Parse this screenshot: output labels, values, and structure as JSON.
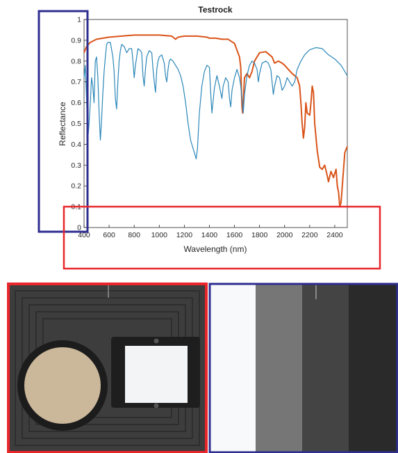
{
  "chart_data": {
    "type": "line",
    "title": "Testrock",
    "xlabel": "Wavelength (nm)",
    "ylabel": "Reflectance",
    "xlim": [
      400,
      2500
    ],
    "ylim": [
      0,
      1
    ],
    "x_ticks": [
      "400",
      "600",
      "800",
      "1000",
      "1200",
      "1400",
      "1600",
      "1800",
      "2000",
      "2200",
      "2400"
    ],
    "y_ticks": [
      "0",
      "0.1",
      "0.2",
      "0.3",
      "0.4",
      "0.5",
      "0.6",
      "0.7",
      "0.8",
      "0.9",
      "1"
    ],
    "grid": false,
    "legend": "none",
    "series": [
      {
        "color": "#d95319",
        "points": [
          [
            400,
            0.84
          ],
          [
            420,
            0.87
          ],
          [
            450,
            0.89
          ],
          [
            500,
            0.905
          ],
          [
            600,
            0.915
          ],
          [
            700,
            0.92
          ],
          [
            800,
            0.925
          ],
          [
            900,
            0.925
          ],
          [
            1000,
            0.925
          ],
          [
            1100,
            0.92
          ],
          [
            1130,
            0.905
          ],
          [
            1150,
            0.915
          ],
          [
            1200,
            0.92
          ],
          [
            1300,
            0.92
          ],
          [
            1380,
            0.915
          ],
          [
            1400,
            0.91
          ],
          [
            1450,
            0.91
          ],
          [
            1500,
            0.905
          ],
          [
            1550,
            0.905
          ],
          [
            1600,
            0.885
          ],
          [
            1640,
            0.82
          ],
          [
            1650,
            0.77
          ],
          [
            1660,
            0.58
          ],
          [
            1665,
            0.55
          ],
          [
            1670,
            0.6
          ],
          [
            1680,
            0.72
          ],
          [
            1700,
            0.74
          ],
          [
            1720,
            0.72
          ],
          [
            1740,
            0.75
          ],
          [
            1760,
            0.8
          ],
          [
            1800,
            0.84
          ],
          [
            1850,
            0.845
          ],
          [
            1900,
            0.82
          ],
          [
            1920,
            0.79
          ],
          [
            1950,
            0.8
          ],
          [
            1980,
            0.79
          ],
          [
            2000,
            0.78
          ],
          [
            2030,
            0.76
          ],
          [
            2060,
            0.74
          ],
          [
            2080,
            0.73
          ],
          [
            2100,
            0.72
          ],
          [
            2120,
            0.68
          ],
          [
            2130,
            0.6
          ],
          [
            2140,
            0.5
          ],
          [
            2150,
            0.43
          ],
          [
            2160,
            0.48
          ],
          [
            2170,
            0.6
          ],
          [
            2180,
            0.55
          ],
          [
            2200,
            0.54
          ],
          [
            2210,
            0.6
          ],
          [
            2220,
            0.68
          ],
          [
            2230,
            0.65
          ],
          [
            2240,
            0.5
          ],
          [
            2260,
            0.37
          ],
          [
            2280,
            0.29
          ],
          [
            2300,
            0.28
          ],
          [
            2320,
            0.3
          ],
          [
            2340,
            0.25
          ],
          [
            2350,
            0.22
          ],
          [
            2370,
            0.27
          ],
          [
            2390,
            0.24
          ],
          [
            2410,
            0.28
          ],
          [
            2420,
            0.2
          ],
          [
            2430,
            0.17
          ],
          [
            2440,
            0.1
          ],
          [
            2450,
            0.12
          ],
          [
            2460,
            0.2
          ],
          [
            2470,
            0.28
          ],
          [
            2480,
            0.36
          ],
          [
            2500,
            0.39
          ]
        ]
      },
      {
        "color": "#2a86b8",
        "points": [
          [
            400,
            0.72
          ],
          [
            410,
            0.78
          ],
          [
            420,
            0.62
          ],
          [
            425,
            0.5
          ],
          [
            430,
            0.42
          ],
          [
            440,
            0.5
          ],
          [
            450,
            0.6
          ],
          [
            460,
            0.72
          ],
          [
            470,
            0.68
          ],
          [
            480,
            0.6
          ],
          [
            490,
            0.8
          ],
          [
            500,
            0.82
          ],
          [
            510,
            0.72
          ],
          [
            520,
            0.55
          ],
          [
            530,
            0.42
          ],
          [
            540,
            0.52
          ],
          [
            550,
            0.65
          ],
          [
            560,
            0.75
          ],
          [
            570,
            0.82
          ],
          [
            580,
            0.88
          ],
          [
            590,
            0.89
          ],
          [
            610,
            0.89
          ],
          [
            630,
            0.82
          ],
          [
            640,
            0.75
          ],
          [
            650,
            0.62
          ],
          [
            660,
            0.57
          ],
          [
            670,
            0.7
          ],
          [
            680,
            0.8
          ],
          [
            690,
            0.85
          ],
          [
            700,
            0.88
          ],
          [
            720,
            0.87
          ],
          [
            740,
            0.84
          ],
          [
            760,
            0.86
          ],
          [
            780,
            0.86
          ],
          [
            790,
            0.8
          ],
          [
            800,
            0.72
          ],
          [
            810,
            0.78
          ],
          [
            820,
            0.82
          ],
          [
            830,
            0.86
          ],
          [
            850,
            0.85
          ],
          [
            860,
            0.84
          ],
          [
            870,
            0.73
          ],
          [
            880,
            0.68
          ],
          [
            890,
            0.76
          ],
          [
            900,
            0.82
          ],
          [
            920,
            0.85
          ],
          [
            940,
            0.84
          ],
          [
            950,
            0.76
          ],
          [
            960,
            0.7
          ],
          [
            970,
            0.65
          ],
          [
            980,
            0.76
          ],
          [
            990,
            0.8
          ],
          [
            1000,
            0.82
          ],
          [
            1020,
            0.83
          ],
          [
            1040,
            0.79
          ],
          [
            1050,
            0.73
          ],
          [
            1060,
            0.7
          ],
          [
            1070,
            0.76
          ],
          [
            1080,
            0.8
          ],
          [
            1090,
            0.81
          ],
          [
            1110,
            0.8
          ],
          [
            1130,
            0.78
          ],
          [
            1150,
            0.76
          ],
          [
            1170,
            0.73
          ],
          [
            1190,
            0.68
          ],
          [
            1210,
            0.6
          ],
          [
            1230,
            0.5
          ],
          [
            1250,
            0.42
          ],
          [
            1270,
            0.38
          ],
          [
            1285,
            0.35
          ],
          [
            1295,
            0.33
          ],
          [
            1305,
            0.38
          ],
          [
            1320,
            0.55
          ],
          [
            1340,
            0.68
          ],
          [
            1360,
            0.75
          ],
          [
            1380,
            0.78
          ],
          [
            1400,
            0.77
          ],
          [
            1410,
            0.65
          ],
          [
            1420,
            0.55
          ],
          [
            1440,
            0.67
          ],
          [
            1460,
            0.73
          ],
          [
            1480,
            0.68
          ],
          [
            1500,
            0.62
          ],
          [
            1510,
            0.68
          ],
          [
            1530,
            0.72
          ],
          [
            1550,
            0.7
          ],
          [
            1560,
            0.62
          ],
          [
            1570,
            0.58
          ],
          [
            1580,
            0.66
          ],
          [
            1600,
            0.72
          ],
          [
            1620,
            0.76
          ],
          [
            1640,
            0.72
          ],
          [
            1650,
            0.68
          ],
          [
            1660,
            0.62
          ],
          [
            1670,
            0.55
          ],
          [
            1680,
            0.64
          ],
          [
            1700,
            0.73
          ],
          [
            1720,
            0.78
          ],
          [
            1740,
            0.8
          ],
          [
            1760,
            0.79
          ],
          [
            1780,
            0.76
          ],
          [
            1790,
            0.7
          ],
          [
            1800,
            0.74
          ],
          [
            1820,
            0.79
          ],
          [
            1850,
            0.8
          ],
          [
            1870,
            0.79
          ],
          [
            1890,
            0.76
          ],
          [
            1900,
            0.7
          ],
          [
            1910,
            0.64
          ],
          [
            1920,
            0.68
          ],
          [
            1940,
            0.73
          ],
          [
            1960,
            0.72
          ],
          [
            1980,
            0.66
          ],
          [
            2000,
            0.68
          ],
          [
            2020,
            0.72
          ],
          [
            2040,
            0.7
          ],
          [
            2060,
            0.68
          ],
          [
            2080,
            0.7
          ],
          [
            2100,
            0.76
          ],
          [
            2130,
            0.8
          ],
          [
            2160,
            0.83
          ],
          [
            2200,
            0.855
          ],
          [
            2250,
            0.865
          ],
          [
            2300,
            0.86
          ],
          [
            2350,
            0.83
          ],
          [
            2400,
            0.81
          ],
          [
            2450,
            0.78
          ],
          [
            2500,
            0.73
          ]
        ]
      }
    ]
  },
  "overlays": [
    {
      "color": "#2e2e8f"
    },
    {
      "color": "#e8262b"
    }
  ],
  "photos": {
    "left": {
      "border_color": "#e8262b",
      "plate_color": "#3d3d3d",
      "disc_color": "#cbb79a",
      "square_color": "#f2f4f6"
    },
    "right": {
      "border_color": "#2e2e8f",
      "strip_colors": [
        "#f8f9fb",
        "#767676",
        "#444444",
        "#2a2a2a"
      ]
    }
  }
}
